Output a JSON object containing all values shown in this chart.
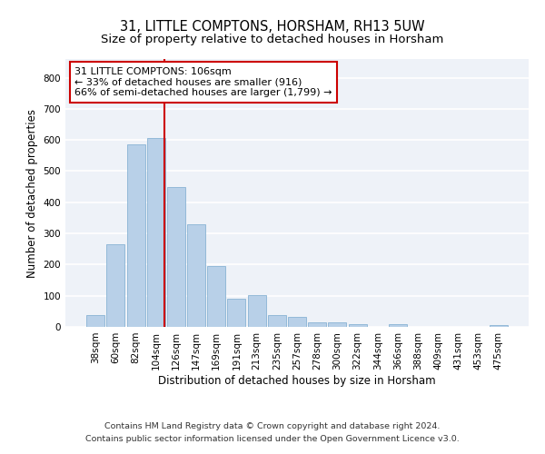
{
  "title": "31, LITTLE COMPTONS, HORSHAM, RH13 5UW",
  "subtitle": "Size of property relative to detached houses in Horsham",
  "xlabel": "Distribution of detached houses by size in Horsham",
  "ylabel": "Number of detached properties",
  "categories": [
    "38sqm",
    "60sqm",
    "82sqm",
    "104sqm",
    "126sqm",
    "147sqm",
    "169sqm",
    "191sqm",
    "213sqm",
    "235sqm",
    "257sqm",
    "278sqm",
    "300sqm",
    "322sqm",
    "344sqm",
    "366sqm",
    "388sqm",
    "409sqm",
    "431sqm",
    "453sqm",
    "475sqm"
  ],
  "values": [
    37,
    265,
    585,
    605,
    450,
    328,
    195,
    90,
    102,
    37,
    32,
    15,
    14,
    10,
    0,
    8,
    0,
    0,
    0,
    0,
    7
  ],
  "bar_color": "#b8d0e8",
  "bar_edge_color": "#7aaace",
  "background_color": "#eef2f8",
  "grid_color": "#ffffff",
  "annotation_box_text": "31 LITTLE COMPTONS: 106sqm\n← 33% of detached houses are smaller (916)\n66% of semi-detached houses are larger (1,799) →",
  "annotation_box_color": "#ffffff",
  "annotation_box_edge_color": "#cc0000",
  "vline_x": 3.42,
  "vline_color": "#cc0000",
  "ylim": [
    0,
    860
  ],
  "yticks": [
    0,
    100,
    200,
    300,
    400,
    500,
    600,
    700,
    800
  ],
  "footer_line1": "Contains HM Land Registry data © Crown copyright and database right 2024.",
  "footer_line2": "Contains public sector information licensed under the Open Government Licence v3.0.",
  "title_fontsize": 10.5,
  "subtitle_fontsize": 9.5,
  "xlabel_fontsize": 8.5,
  "ylabel_fontsize": 8.5,
  "tick_fontsize": 7.5,
  "annotation_fontsize": 8,
  "footer_fontsize": 6.8
}
